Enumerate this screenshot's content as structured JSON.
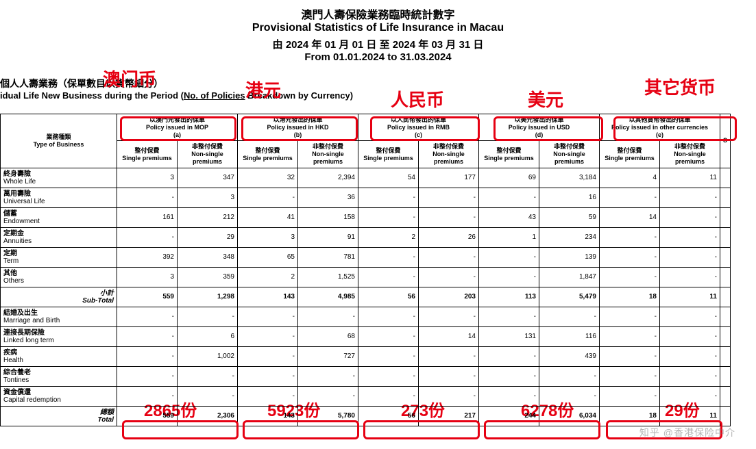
{
  "header": {
    "title_zh": "澳門人壽保險業務臨時統計數字",
    "title_en": "Provisional Statistics of Life Insurance in Macau",
    "period_zh": "由 2024 年 01 月 01 日 至 2024 年 03 月 31 日",
    "period_en": "From 01.01.2024 to 31.03.2024"
  },
  "subtitle": {
    "zh": "個人人壽業務（保單數目以貨幣細分）",
    "en_pre": "idual Life New Business during the Period (",
    "en_u": "No. of Policies",
    "en_post": " Breakdown by Currency)"
  },
  "annotations": {
    "mop": "澳门币",
    "hkd": "港元",
    "rmb": "人民币",
    "usd": "美元",
    "other": "其它货币",
    "count_mop": "2865份",
    "count_hkd": "5923份",
    "count_rmb": "273份",
    "count_usd": "6278份",
    "count_other": "29份"
  },
  "watermark": "知乎  @香港保险中介",
  "columns": {
    "type_label": "業務種類\nType of Business",
    "currency_groups": [
      {
        "zh": "以澳門元發出的保單",
        "en": "Policy issued in MOP",
        "tag": "(a)"
      },
      {
        "zh": "以港元發出的保單",
        "en": "Policy issued in HKD",
        "tag": "(b)"
      },
      {
        "zh": "以人民幣發出的保單",
        "en": "Policy issued in RMB",
        "tag": "(c)"
      },
      {
        "zh": "以美元發出的保單",
        "en": "Policy issued in USD",
        "tag": "(d)"
      },
      {
        "zh": "以其他貨幣發出的保單",
        "en": "Policy issued in other currencies",
        "tag": "(e)"
      }
    ],
    "sub_single": {
      "zh": "整付保費",
      "en": "Single premiums"
    },
    "sub_nonsingle": {
      "zh": "非整付保費",
      "en": "Non-single\npremiums"
    }
  },
  "rows": [
    {
      "zh": "終身壽險",
      "en": "Whole Life",
      "v": [
        "3",
        "347",
        "32",
        "2,394",
        "54",
        "177",
        "69",
        "3,184",
        "4",
        "11"
      ]
    },
    {
      "zh": "萬用壽險",
      "en": "Universal Life",
      "v": [
        "-",
        "3",
        "-",
        "36",
        "-",
        "-",
        "-",
        "16",
        "-",
        "-"
      ]
    },
    {
      "zh": "儲蓄",
      "en": "Endowment",
      "v": [
        "161",
        "212",
        "41",
        "158",
        "-",
        "-",
        "43",
        "59",
        "14",
        "-"
      ]
    },
    {
      "zh": "定期金",
      "en": "Annuities",
      "v": [
        "-",
        "29",
        "3",
        "91",
        "2",
        "26",
        "1",
        "234",
        "-",
        "-"
      ]
    },
    {
      "zh": "定期",
      "en": "Term",
      "v": [
        "392",
        "348",
        "65",
        "781",
        "-",
        "-",
        "-",
        "139",
        "-",
        "-"
      ]
    },
    {
      "zh": "其他",
      "en": "Others",
      "v": [
        "3",
        "359",
        "2",
        "1,525",
        "-",
        "-",
        "-",
        "1,847",
        "-",
        "-"
      ]
    }
  ],
  "subtotal": {
    "zh": "小計",
    "en": "Sub-Total",
    "v": [
      "559",
      "1,298",
      "143",
      "4,985",
      "56",
      "203",
      "113",
      "5,479",
      "18",
      "11"
    ]
  },
  "rows2": [
    {
      "zh": "結婚及出生",
      "en": "Marriage and Birth",
      "v": [
        "-",
        "-",
        "-",
        "-",
        "-",
        "-",
        "-",
        "-",
        "-",
        "-"
      ]
    },
    {
      "zh": "連接長期保險",
      "en": "Linked long term",
      "v": [
        "-",
        "6",
        "-",
        "68",
        "-",
        "14",
        "131",
        "116",
        "-",
        "-"
      ]
    },
    {
      "zh": "疾病",
      "en": "Health",
      "v": [
        "-",
        "1,002",
        "-",
        "727",
        "-",
        "-",
        "-",
        "439",
        "-",
        "-"
      ]
    },
    {
      "zh": "綜合養老",
      "en": "Tontines",
      "v": [
        "-",
        "-",
        "-",
        "-",
        "-",
        "-",
        "-",
        "-",
        "-",
        "-"
      ]
    },
    {
      "zh": "資金償還",
      "en": "Capital redemption",
      "v": [
        "-",
        "-",
        "-",
        "-",
        "-",
        "-",
        "-",
        "-",
        "-",
        "-"
      ]
    }
  ],
  "total": {
    "zh": "總額",
    "en": "Total",
    "v": [
      "559",
      "2,306",
      "143",
      "5,780",
      "56",
      "217",
      "244",
      "6,034",
      "18",
      "11"
    ]
  },
  "style": {
    "annotation_color": "#e60012",
    "annotation_fontsize_big": 26,
    "annotation_fontsize_count": 24,
    "redbox_border": "#e60012",
    "table_border": "#000000",
    "background": "#ffffff"
  }
}
